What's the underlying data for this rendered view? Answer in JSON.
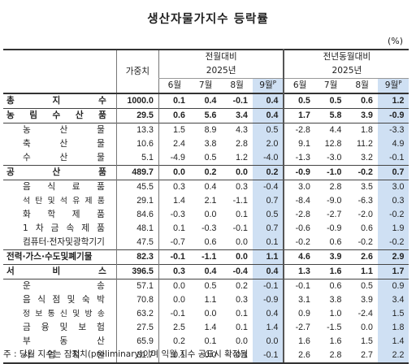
{
  "title": "생산자물가지수 등락률",
  "unit": "(%)",
  "header": {
    "weight_label": "가중치",
    "group1": "전월대비",
    "group2": "전년동월대비",
    "year": "2025년",
    "months": [
      "6월",
      "7월",
      "8월",
      "9월"
    ],
    "preliminary_mark": "P"
  },
  "rows": [
    {
      "label": "총 지 수",
      "weight": "1000.0",
      "mom": [
        "0.1",
        "0.4",
        "-0.1",
        "0.4"
      ],
      "yoy": [
        "0.5",
        "0.5",
        "0.6",
        "1.2"
      ],
      "major": true
    },
    {
      "label": "농 림 수 산 품",
      "weight": "29.5",
      "mom": [
        "0.6",
        "5.6",
        "3.4",
        "0.4"
      ],
      "yoy": [
        "1.7",
        "5.8",
        "3.9",
        "-0.9"
      ],
      "major": true
    },
    {
      "label": "농 산 물",
      "weight": "13.3",
      "mom": [
        "1.5",
        "8.9",
        "4.3",
        "0.5"
      ],
      "yoy": [
        "-2.8",
        "4.4",
        "1.8",
        "-3.3"
      ],
      "major": false
    },
    {
      "label": "축 산 물",
      "weight": "10.6",
      "mom": [
        "2.4",
        "3.8",
        "2.8",
        "2.0"
      ],
      "yoy": [
        "9.1",
        "12.8",
        "11.2",
        "4.9"
      ],
      "major": false
    },
    {
      "label": "수 산 물",
      "weight": "5.1",
      "mom": [
        "-4.9",
        "0.5",
        "1.2",
        "-4.0"
      ],
      "yoy": [
        "-1.3",
        "-3.0",
        "3.2",
        "-0.1"
      ],
      "major": false
    },
    {
      "label": "공 산 품",
      "weight": "489.7",
      "mom": [
        "0.0",
        "0.2",
        "0.0",
        "0.2"
      ],
      "yoy": [
        "-0.9",
        "-1.0",
        "-0.2",
        "0.7"
      ],
      "major": true
    },
    {
      "label": "음 식 료 품",
      "weight": "45.5",
      "mom": [
        "0.3",
        "0.4",
        "0.3",
        "-0.4"
      ],
      "yoy": [
        "3.0",
        "2.8",
        "3.5",
        "3.0"
      ],
      "major": false
    },
    {
      "label": "석 탄 및 석 유 제 품",
      "weight": "29.1",
      "mom": [
        "1.4",
        "2.1",
        "-1.1",
        "0.7"
      ],
      "yoy": [
        "-8.4",
        "-9.0",
        "-6.3",
        "0.3"
      ],
      "major": false
    },
    {
      "label": "화 학 제 품",
      "weight": "84.6",
      "mom": [
        "-0.3",
        "0.0",
        "0.1",
        "0.5"
      ],
      "yoy": [
        "-2.8",
        "-2.7",
        "-2.0",
        "-0.2"
      ],
      "major": false
    },
    {
      "label": "1 차 금 속 제 품",
      "weight": "48.1",
      "mom": [
        "0.1",
        "-0.3",
        "-0.1",
        "0.7"
      ],
      "yoy": [
        "-0.6",
        "-0.9",
        "0.6",
        "1.9"
      ],
      "major": false
    },
    {
      "label": "컴퓨터·전자및광학기기",
      "weight": "47.5",
      "mom": [
        "-0.7",
        "0.6",
        "0.0",
        "0.1"
      ],
      "yoy": [
        "-0.2",
        "0.6",
        "-0.2",
        "-0.2"
      ],
      "major": false
    },
    {
      "label": "전력·가스·수도및폐기물",
      "weight": "82.3",
      "mom": [
        "-0.1",
        "-1.1",
        "0.0",
        "1.1"
      ],
      "yoy": [
        "4.6",
        "3.9",
        "2.6",
        "2.9"
      ],
      "major": true
    },
    {
      "label": "서 비 스",
      "weight": "396.5",
      "mom": [
        "0.3",
        "0.4",
        "-0.4",
        "0.4"
      ],
      "yoy": [
        "1.3",
        "1.6",
        "1.1",
        "1.7"
      ],
      "major": true
    },
    {
      "label": "운 송",
      "weight": "57.1",
      "mom": [
        "0.0",
        "0.5",
        "0.2",
        "-0.1"
      ],
      "yoy": [
        "-0.1",
        "0.6",
        "0.5",
        "0.9"
      ],
      "major": false
    },
    {
      "label": "음 식 점 및 숙 박",
      "weight": "70.8",
      "mom": [
        "0.0",
        "1.1",
        "0.3",
        "-0.9"
      ],
      "yoy": [
        "3.1",
        "3.8",
        "3.9",
        "3.4"
      ],
      "major": false
    },
    {
      "label": "정 보 통 신 및 방 송",
      "weight": "63.2",
      "mom": [
        "-0.1",
        "0.0",
        "0.1",
        "0.4"
      ],
      "yoy": [
        "0.9",
        "1.0",
        "-2.4",
        "1.5"
      ],
      "major": false
    },
    {
      "label": "금 융 및 보 험",
      "weight": "27.5",
      "mom": [
        "2.5",
        "1.4",
        "0.1",
        "1.4"
      ],
      "yoy": [
        "-2.7",
        "-1.5",
        "0.0",
        "1.8"
      ],
      "major": false
    },
    {
      "label": "부 동 산",
      "weight": "65.9",
      "mom": [
        "0.2",
        "0.1",
        "0.0",
        "0.0"
      ],
      "yoy": [
        "1.6",
        "1.6",
        "1.5",
        "1.4"
      ],
      "major": false
    },
    {
      "label": "사 업 지 원",
      "weight": "31.7",
      "mom": [
        "0.1",
        "0.0",
        "-0.1",
        "-0.1"
      ],
      "yoy": [
        "2.6",
        "2.8",
        "2.7",
        "2.2"
      ],
      "major": false
    }
  ],
  "footnote": "주 : 당월 지수는 잠정치(preliminary)이며 익월 지수 공표시 확정됨",
  "colors": {
    "highlight": "#cfe0f3",
    "text": "#222222"
  }
}
